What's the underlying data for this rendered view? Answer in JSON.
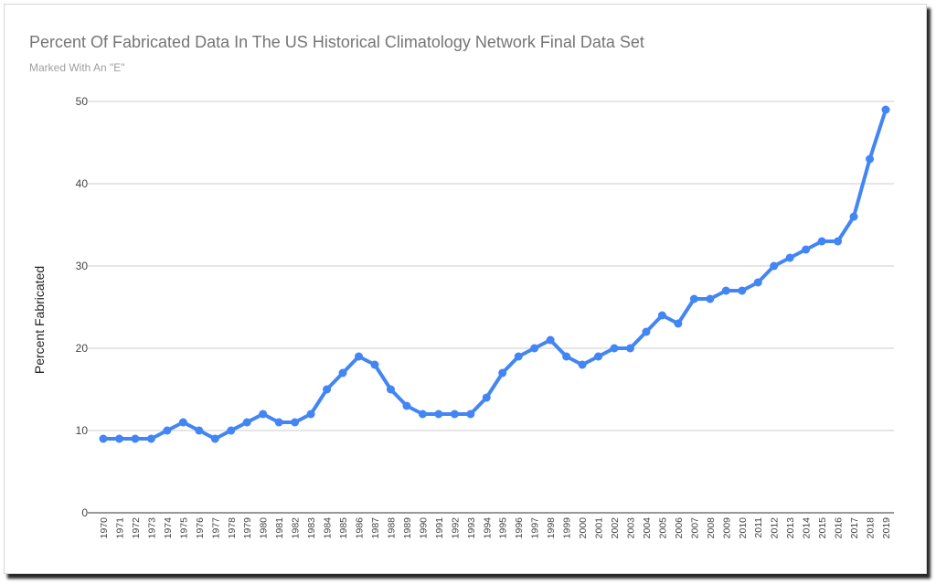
{
  "chart_data": {
    "type": "line",
    "title": "Percent Of Fabricated Data In The US Historical Climatology Network Final Data Set",
    "subtitle": "Marked With An \"E\"",
    "xlabel": "",
    "ylabel": "Percent Fabricated",
    "ylim": [
      0,
      50
    ],
    "yticks": [
      0,
      10,
      20,
      30,
      40,
      50
    ],
    "grid": true,
    "legend": "none",
    "color": "#4285f4",
    "x": [
      "1970",
      "1971",
      "1972",
      "1973",
      "1974",
      "1975",
      "1976",
      "1977",
      "1978",
      "1979",
      "1980",
      "1981",
      "1982",
      "1983",
      "1984",
      "1985",
      "1986",
      "1987",
      "1988",
      "1989",
      "1990",
      "1991",
      "1992",
      "1993",
      "1994",
      "1995",
      "1996",
      "1997",
      "1998",
      "1999",
      "2000",
      "2001",
      "2002",
      "2003",
      "2004",
      "2005",
      "2006",
      "2007",
      "2008",
      "2009",
      "2010",
      "2011",
      "2012",
      "2013",
      "2014",
      "2015",
      "2016",
      "2017",
      "2018",
      "2019"
    ],
    "series": [
      {
        "values": [
          9,
          9,
          9,
          9,
          10,
          11,
          10,
          9,
          10,
          11,
          12,
          11,
          11,
          12,
          15,
          17,
          19,
          18,
          15,
          13,
          12,
          12,
          12,
          12,
          14,
          17,
          19,
          20,
          21,
          19,
          18,
          19,
          20,
          20,
          22,
          24,
          23,
          26,
          26,
          27,
          27,
          28,
          30,
          31,
          32,
          33,
          33,
          36,
          43,
          49
        ]
      }
    ]
  }
}
